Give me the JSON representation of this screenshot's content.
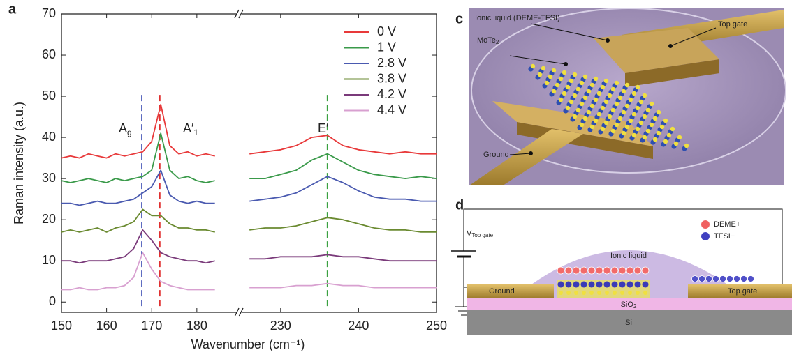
{
  "chart_data": {
    "type": "line",
    "panel": "a",
    "x": [
      150,
      152,
      154,
      156,
      158,
      160,
      162,
      164,
      166,
      168,
      170,
      172,
      174,
      176,
      178,
      180,
      182,
      184,
      226,
      228,
      230,
      232,
      234,
      236,
      238,
      240,
      242,
      244,
      246,
      248,
      250
    ],
    "xlim": [
      150,
      250
    ],
    "x_break": [
      189,
      225
    ],
    "xticks": [
      150,
      160,
      170,
      180,
      230,
      240,
      250
    ],
    "ylim": [
      -2.5,
      70
    ],
    "yticks": [
      0,
      10,
      20,
      30,
      40,
      50,
      60,
      70
    ],
    "x_label": "Wavenumber (cm⁻¹)",
    "y_label": "Raman intensity (a.u.)",
    "series": [
      {
        "name": "0 V",
        "color": "#e8393a",
        "values": [
          35,
          35.5,
          35,
          36,
          35.5,
          35,
          36,
          35.5,
          36,
          36.5,
          39,
          48,
          38,
          36,
          36.5,
          35.5,
          36,
          35.5,
          36,
          36.5,
          37,
          38,
          40,
          40.5,
          38,
          37,
          36.5,
          36,
          36.5,
          36,
          36
        ]
      },
      {
        "name": "1 V",
        "color": "#3a9a4a",
        "values": [
          29.5,
          29,
          29.5,
          30,
          29.5,
          29,
          30,
          29.5,
          30,
          30.5,
          32,
          41,
          32,
          30,
          30.5,
          29.5,
          29,
          29.5,
          30,
          30,
          31,
          32,
          34.5,
          36,
          34,
          32,
          31,
          30.5,
          30,
          30.5,
          30
        ]
      },
      {
        "name": "2.8 V",
        "color": "#4a5ab0",
        "values": [
          24,
          24,
          23.5,
          24,
          24.5,
          24,
          24,
          24.5,
          25,
          26.5,
          28,
          32,
          26,
          24.5,
          24,
          24.5,
          24,
          24,
          24.5,
          25,
          25.5,
          26.5,
          28.5,
          30.5,
          29,
          27,
          25.5,
          25,
          25,
          24.5,
          24.5
        ]
      },
      {
        "name": "3.8 V",
        "color": "#6a8a30",
        "values": [
          17,
          17.5,
          17,
          17.5,
          18,
          17,
          18,
          18.5,
          19.5,
          22.5,
          21,
          21,
          19,
          18,
          18,
          17.5,
          17.5,
          17,
          17.5,
          18,
          18,
          18.5,
          19.5,
          20.5,
          20,
          19,
          18,
          17.5,
          17.5,
          17,
          17
        ]
      },
      {
        "name": "4.2 V",
        "color": "#7a3a7a",
        "values": [
          10,
          10,
          9.5,
          10,
          10,
          10,
          10.5,
          11,
          13,
          17.5,
          15,
          12,
          11,
          10.5,
          10,
          10,
          9.5,
          10,
          10.5,
          10.5,
          11,
          11,
          11,
          11.5,
          11,
          11,
          10.5,
          10,
          10,
          10,
          10
        ]
      },
      {
        "name": "4.4 V",
        "color": "#d8a0d0",
        "values": [
          3,
          3,
          3.5,
          3,
          3,
          3.5,
          3.5,
          4,
          6,
          12,
          8,
          5,
          4,
          3.5,
          3,
          3,
          3,
          3,
          3.5,
          3.5,
          3.5,
          4,
          4,
          4.5,
          4,
          4,
          3.5,
          3.5,
          3.5,
          3.5,
          3.5
        ]
      }
    ],
    "legend": "upper right",
    "annotations": [
      {
        "text": "A",
        "sub": "g"
      },
      {
        "text": "A′",
        "sub": "1"
      },
      {
        "text": "E′"
      }
    ],
    "vlines": [
      {
        "x": 167.8,
        "color": "#4a5ab8"
      },
      {
        "x": 171.8,
        "color": "#e03030"
      },
      {
        "x": 236,
        "color": "#3aa040"
      }
    ]
  },
  "panel_c": {
    "letter": "c",
    "liquid": "Ionic liquid (DEME-TFSI)",
    "top_gate": "Top gate",
    "material": {
      "text": "MoTe",
      "sub": "2"
    },
    "ground": "Ground"
  },
  "panel_d": {
    "letter": "d",
    "voltage": {
      "text": "V",
      "sub": "Top gate"
    },
    "cation": "DEME+",
    "anion": "TFSI−",
    "liquid": "Ionic liquid",
    "ground": "Ground",
    "top_gate": "Top gate",
    "oxide": {
      "text": "SiO",
      "sub": "2"
    },
    "substrate": "Si"
  }
}
